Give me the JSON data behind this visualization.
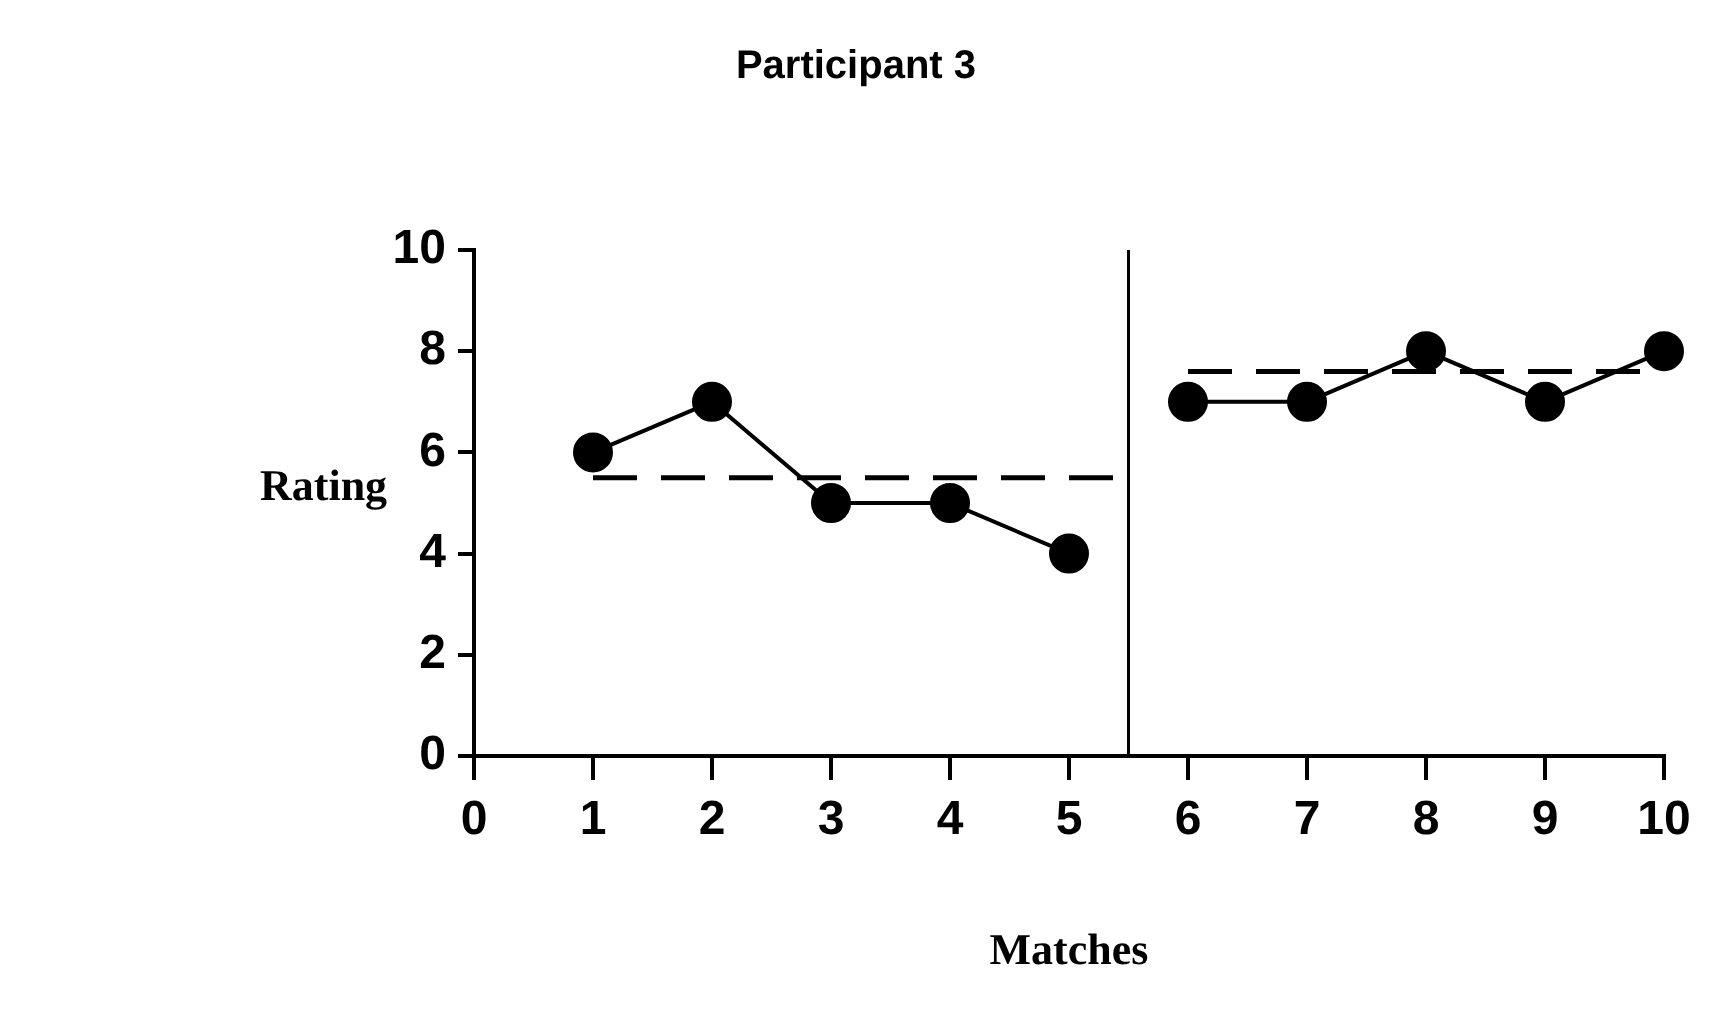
{
  "chart_data": {
    "type": "line",
    "title": "Participant 3",
    "xlabel": "Matches",
    "ylabel": "Rating",
    "series": [
      {
        "color": "#000000",
        "x": [
          1,
          2,
          3,
          4,
          5
        ],
        "values": [
          6,
          7,
          5,
          5,
          4
        ],
        "marker": "circle",
        "line_style": "solid"
      },
      {
        "color": "#000000",
        "x": [
          6,
          7,
          8,
          9,
          10
        ],
        "values": [
          7,
          7,
          8,
          7,
          8
        ],
        "marker": "circle",
        "line_style": "solid"
      },
      {
        "color": "#000000",
        "x": [
          1,
          5.5
        ],
        "values": [
          5.5,
          5.5
        ],
        "marker": "none",
        "line_style": "dashed"
      },
      {
        "color": "#000000",
        "x": [
          6,
          10
        ],
        "values": [
          7.6,
          7.6
        ],
        "marker": "none",
        "line_style": "dashed"
      }
    ],
    "xlim": [
      0,
      10
    ],
    "xticks": [
      0,
      1,
      2,
      3,
      4,
      5,
      6,
      7,
      8,
      9,
      10
    ],
    "ylim": [
      0,
      10
    ],
    "yticks": [
      0,
      2,
      4,
      6,
      8,
      10
    ],
    "ref_lines": [
      {
        "axis": "x",
        "value": 5.5,
        "color": "#000000"
      }
    ],
    "grid": false,
    "legend": false
  }
}
